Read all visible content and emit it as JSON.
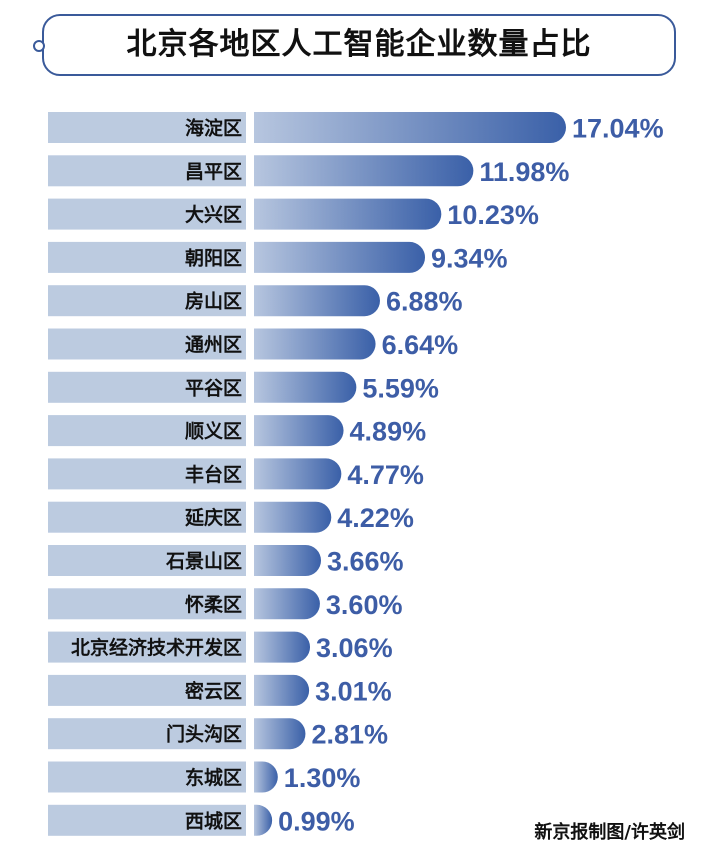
{
  "chart_data": {
    "type": "bar",
    "orientation": "horizontal",
    "title": "北京各地区人工智能企业数量占比",
    "categories": [
      "海淀区",
      "昌平区",
      "大兴区",
      "朝阳区",
      "房山区",
      "通州区",
      "平谷区",
      "顺义区",
      "丰台区",
      "延庆区",
      "石景山区",
      "怀柔区",
      "北京经济技术开发区",
      "密云区",
      "门头沟区",
      "东城区",
      "西城区"
    ],
    "values": [
      17.04,
      11.98,
      10.23,
      9.34,
      6.88,
      6.64,
      5.59,
      4.89,
      4.77,
      4.22,
      3.66,
      3.6,
      3.06,
      3.01,
      2.81,
      1.3,
      0.99
    ],
    "labels": [
      "17.04%",
      "11.98%",
      "10.23%",
      "9.34%",
      "6.88%",
      "6.64%",
      "5.59%",
      "4.89%",
      "4.77%",
      "4.22%",
      "3.66%",
      "3.60%",
      "3.06%",
      "3.01%",
      "2.81%",
      "1.30%",
      "0.99%"
    ],
    "unit": "%",
    "grid": false,
    "legend": "none",
    "colors": {
      "bar_start": "#b7c6df",
      "bar_end": "#3a60a8",
      "label_band": "#bccbe0",
      "value_text": "#3d5da6",
      "frame": "#3a5a9a"
    }
  },
  "credit": "新京报制图/许英剑"
}
